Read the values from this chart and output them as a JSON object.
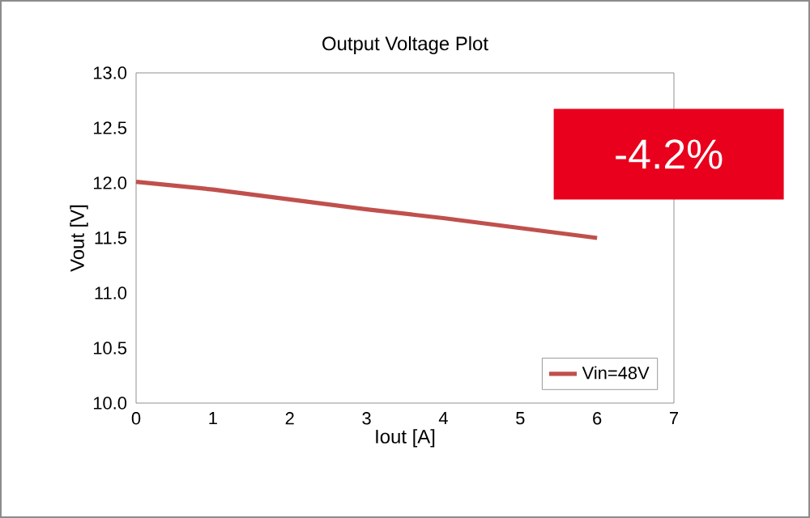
{
  "chart_data": {
    "type": "line",
    "title": "Output Voltage Plot",
    "xlabel": "Iout [A]",
    "ylabel": "Vout [V]",
    "x": [
      0,
      1,
      2,
      3,
      4,
      5,
      6
    ],
    "series": [
      {
        "name": "Vin=48V",
        "color": "#c0504d",
        "values": [
          12.01,
          11.94,
          11.85,
          11.76,
          11.68,
          11.59,
          11.5
        ]
      }
    ],
    "xlim": [
      0,
      7
    ],
    "ylim": [
      10,
      13
    ],
    "xticks": [
      0,
      1,
      2,
      3,
      4,
      5,
      6,
      7
    ],
    "yticks": [
      {
        "value": 10,
        "label": "10.0"
      },
      {
        "value": 10.5,
        "label": "10.5"
      },
      {
        "value": 11,
        "label": "11.0"
      },
      {
        "value": 11.5,
        "label": "11.5"
      },
      {
        "value": 12,
        "label": "12.0"
      },
      {
        "value": 12.5,
        "label": "12.5"
      },
      {
        "value": 13,
        "label": "13.0"
      }
    ],
    "legend": "bottom right",
    "marker": "none",
    "line_style": "solid",
    "annotations": [
      "-4.2%"
    ]
  }
}
